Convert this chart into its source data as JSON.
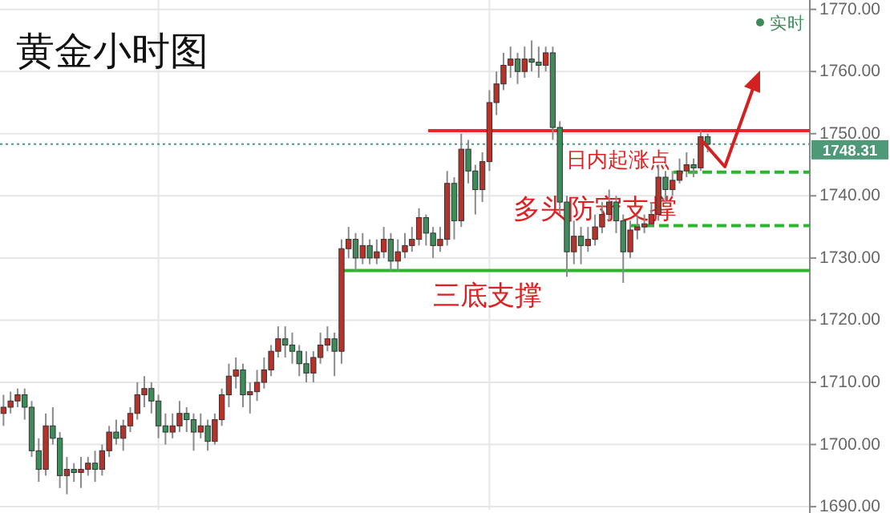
{
  "chart_data": {
    "type": "candlestick",
    "title": "黄金小时图",
    "categories": [
      null,
      null,
      null,
      null,
      null,
      null,
      null,
      null,
      null,
      null,
      null,
      null,
      null,
      null,
      null,
      null,
      null,
      null,
      null,
      null,
      null,
      null,
      null,
      null,
      null,
      null,
      null,
      null,
      null,
      null,
      null,
      null,
      null,
      null,
      null,
      null,
      null,
      null,
      null,
      null,
      null,
      null,
      null,
      null,
      null,
      null,
      null,
      null,
      null,
      null,
      null,
      null,
      null,
      null,
      null,
      null,
      null,
      null,
      null,
      null,
      null,
      null,
      null,
      null,
      null,
      null,
      null,
      null,
      null,
      null,
      null,
      null,
      null,
      null,
      null,
      null,
      null,
      null,
      null,
      null,
      null,
      null,
      null,
      null,
      null,
      null,
      null,
      null,
      null,
      null,
      null,
      null,
      null,
      null,
      null,
      null,
      null,
      null,
      null,
      null,
      null,
      null,
      null,
      null,
      null,
      null,
      null,
      null,
      null,
      null,
      null,
      null,
      null,
      null,
      null
    ],
    "ohlc": [
      [
        1705,
        1708,
        1703,
        1706
      ],
      [
        1706,
        1708.5,
        1705,
        1707
      ],
      [
        1707,
        1709,
        1706,
        1708
      ],
      [
        1708,
        1709,
        1704,
        1706
      ],
      [
        1706,
        1707,
        1698,
        1699
      ],
      [
        1699,
        1701,
        1694,
        1696
      ],
      [
        1696,
        1705,
        1695,
        1703
      ],
      [
        1703,
        1706,
        1700,
        1701
      ],
      [
        1701,
        1702,
        1693,
        1695
      ],
      [
        1695,
        1698,
        1692,
        1696
      ],
      [
        1696,
        1697,
        1694,
        1695.5
      ],
      [
        1695.5,
        1698,
        1693,
        1696
      ],
      [
        1696,
        1698,
        1695,
        1697
      ],
      [
        1697,
        1699,
        1694,
        1696
      ],
      [
        1696,
        1700,
        1695,
        1699
      ],
      [
        1699,
        1703,
        1698,
        1702
      ],
      [
        1702,
        1704,
        1700,
        1701
      ],
      [
        1701,
        1704,
        1699,
        1703
      ],
      [
        1703,
        1706,
        1702,
        1705
      ],
      [
        1705,
        1710,
        1704,
        1708
      ],
      [
        1708,
        1711,
        1706,
        1709
      ],
      [
        1709,
        1710,
        1705,
        1707
      ],
      [
        1707,
        1708,
        1701,
        1703
      ],
      [
        1703,
        1705,
        1700,
        1702
      ],
      [
        1702,
        1705,
        1701,
        1703
      ],
      [
        1703,
        1707,
        1702,
        1705
      ],
      [
        1705,
        1706,
        1702,
        1704
      ],
      [
        1704,
        1705,
        1699,
        1702
      ],
      [
        1702,
        1705,
        1701,
        1703
      ],
      [
        1703,
        1704,
        1699,
        1700.5
      ],
      [
        1700.5,
        1705,
        1700,
        1704
      ],
      [
        1704,
        1709,
        1703,
        1708
      ],
      [
        1708,
        1713,
        1706,
        1711
      ],
      [
        1711,
        1714,
        1709,
        1712
      ],
      [
        1712,
        1713,
        1706,
        1708
      ],
      [
        1708,
        1710,
        1705,
        1708.5
      ],
      [
        1708.5,
        1712,
        1707,
        1710
      ],
      [
        1710,
        1714,
        1709,
        1712
      ],
      [
        1712,
        1716,
        1711,
        1715
      ],
      [
        1715,
        1719,
        1714,
        1717
      ],
      [
        1717,
        1719,
        1714,
        1716
      ],
      [
        1716,
        1718,
        1713,
        1715
      ],
      [
        1715,
        1716,
        1711,
        1713
      ],
      [
        1713,
        1715,
        1710,
        1711.5
      ],
      [
        1711.5,
        1715,
        1710,
        1714
      ],
      [
        1714,
        1718,
        1713,
        1716
      ],
      [
        1716,
        1719,
        1715,
        1717
      ],
      [
        1717,
        1718,
        1711,
        1715
      ],
      [
        1715,
        1733,
        1713,
        1731.5
      ],
      [
        1731.5,
        1735,
        1730,
        1733
      ],
      [
        1733,
        1734,
        1728,
        1730
      ],
      [
        1730,
        1734,
        1729,
        1732
      ],
      [
        1732,
        1733,
        1729,
        1730
      ],
      [
        1730,
        1733,
        1729,
        1731
      ],
      [
        1731,
        1735,
        1730,
        1733
      ],
      [
        1733,
        1734,
        1728,
        1729.5
      ],
      [
        1729.5,
        1733,
        1728,
        1731
      ],
      [
        1731,
        1734,
        1730,
        1732
      ],
      [
        1732,
        1735,
        1731,
        1733
      ],
      [
        1733,
        1738,
        1732,
        1736.5
      ],
      [
        1736.5,
        1737,
        1732,
        1734
      ],
      [
        1734,
        1735,
        1730,
        1732
      ],
      [
        1732,
        1735,
        1731,
        1733
      ],
      [
        1733,
        1744,
        1732,
        1742
      ],
      [
        1742,
        1743,
        1733,
        1736
      ],
      [
        1736,
        1750,
        1735,
        1747.5
      ],
      [
        1747.5,
        1749,
        1742,
        1744
      ],
      [
        1744,
        1745,
        1737,
        1741
      ],
      [
        1741,
        1747,
        1739,
        1745.5
      ],
      [
        1745.5,
        1757,
        1744,
        1755
      ],
      [
        1755,
        1760,
        1753,
        1758
      ],
      [
        1758,
        1763,
        1757,
        1761
      ],
      [
        1761,
        1764,
        1759,
        1762
      ],
      [
        1762,
        1763,
        1758,
        1760
      ],
      [
        1760,
        1764,
        1759,
        1762
      ],
      [
        1762,
        1765,
        1760,
        1761.5
      ],
      [
        1761.5,
        1764,
        1759,
        1761
      ],
      [
        1761,
        1764,
        1760,
        1763
      ],
      [
        1763,
        1764,
        1749,
        1751
      ],
      [
        1751,
        1752,
        1737,
        1739
      ],
      [
        1739,
        1740,
        1727,
        1731
      ],
      [
        1731,
        1736,
        1729,
        1733.5
      ],
      [
        1733.5,
        1735,
        1729,
        1732
      ],
      [
        1732,
        1735,
        1731,
        1733
      ],
      [
        1733,
        1737,
        1732,
        1735
      ],
      [
        1735,
        1739,
        1734,
        1737
      ],
      [
        1737,
        1741,
        1736,
        1739
      ],
      [
        1739,
        1740,
        1734,
        1736
      ],
      [
        1736,
        1737,
        1726,
        1731
      ],
      [
        1731,
        1736,
        1730,
        1734.5
      ],
      [
        1734.5,
        1737,
        1733,
        1735
      ],
      [
        1735,
        1737,
        1734,
        1735.5
      ],
      [
        1735.5,
        1739,
        1735,
        1737
      ],
      [
        1737,
        1745,
        1736,
        1743
      ],
      [
        1743,
        1744,
        1739,
        1741
      ],
      [
        1741,
        1744,
        1740,
        1742.5
      ],
      [
        1742.5,
        1746,
        1742,
        1744
      ],
      [
        1744,
        1747,
        1743,
        1745
      ],
      [
        1745,
        1746,
        1743,
        1744.5
      ],
      [
        1744.5,
        1750.5,
        1744,
        1749.5
      ],
      [
        1749.5,
        1750,
        1747,
        1748.31
      ],
      null,
      null,
      null,
      null,
      null,
      null,
      null,
      null,
      null,
      null,
      null,
      null,
      null,
      null
    ],
    "ylim": [
      1689.5,
      1771.5
    ],
    "yticks": [
      {
        "value": 1690,
        "label": "1690.00"
      },
      {
        "value": 1700,
        "label": "1700.00"
      },
      {
        "value": 1710,
        "label": "1710.00"
      },
      {
        "value": 1720,
        "label": "1720.00"
      },
      {
        "value": 1730,
        "label": "1730.00"
      },
      {
        "value": 1740,
        "label": "1740.00"
      },
      {
        "value": 1750,
        "label": "1750.00"
      },
      {
        "value": 1760,
        "label": "1760.00"
      },
      {
        "value": 1770,
        "label": "1770.00"
      }
    ],
    "grid": true,
    "ref_lines": [
      {
        "axis": "y",
        "value": 1750.5,
        "label": "日内起涨点",
        "color": "#e8262b",
        "line_style": "solid"
      },
      {
        "axis": "y",
        "value": 1743.8,
        "label": "多头防守支撑",
        "color": "#2db52d",
        "line_style": "dashed"
      },
      {
        "axis": "y",
        "value": 1735.2,
        "label": null,
        "color": "#2db52d",
        "line_style": "dashed"
      },
      {
        "axis": "y",
        "value": 1728,
        "label": "三底支撑",
        "color": "#2db52d",
        "line_style": "solid"
      },
      {
        "axis": "y",
        "value": 1748.31,
        "label": "1748.31",
        "color": "#4e9a78",
        "line_style": "dotted"
      }
    ],
    "annotations": [
      "实时"
    ]
  }
}
